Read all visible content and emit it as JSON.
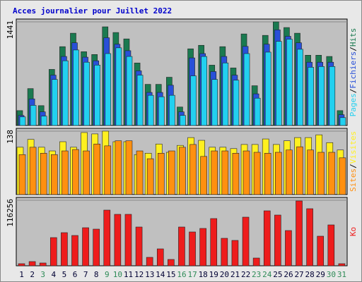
{
  "chart_data": [
    {
      "type": "bar",
      "title": "Acces journalier pour Juillet 2022",
      "legend_separator": "/",
      "categories": [
        "1",
        "2",
        "3",
        "4",
        "5",
        "6",
        "7",
        "8",
        "9",
        "10",
        "11",
        "12",
        "13",
        "14",
        "15",
        "16",
        "17",
        "18",
        "19",
        "20",
        "21",
        "22",
        "23",
        "24",
        "25",
        "26",
        "27",
        "28",
        "29",
        "30",
        "31"
      ],
      "category_colors": [
        "#000033",
        "#000033",
        "#2e8b57",
        "#000033",
        "#000033",
        "#000033",
        "#000033",
        "#000033",
        "#2e8b57",
        "#2e8b57",
        "#000033",
        "#000033",
        "#000033",
        "#000033",
        "#000033",
        "#2e8b57",
        "#2e8b57",
        "#000033",
        "#000033",
        "#000033",
        "#000033",
        "#000033",
        "#2e8b57",
        "#2e8b57",
        "#000033",
        "#000033",
        "#000033",
        "#000033",
        "#000033",
        "#2e8b57",
        "#2e8b57"
      ],
      "ylim": [
        0,
        1441
      ],
      "yticks": [
        1441
      ],
      "series": [
        {
          "name": "Hits",
          "color": "#1a7a50",
          "values": [
            207,
            513,
            276,
            780,
            1096,
            1283,
            1026,
            987,
            1372,
            1293,
            1204,
            869,
            572,
            572,
            671,
            257,
            1066,
            1115,
            839,
            1096,
            800,
            1273,
            553,
            1253,
            1441,
            1362,
            1283,
            977,
            977,
            960,
            207
          ]
        },
        {
          "name": "Fichiers",
          "color": "#2850d8",
          "values": [
            140,
            370,
            190,
            700,
            960,
            1150,
            950,
            900,
            1220,
            1130,
            1040,
            760,
            460,
            460,
            560,
            190,
            940,
            1000,
            750,
            960,
            700,
            1100,
            440,
            1130,
            1330,
            1240,
            1150,
            880,
            880,
            880,
            150
          ]
        },
        {
          "name": "Pages",
          "color": "#22d0f0",
          "values": [
            120,
            280,
            130,
            640,
            900,
            1050,
            880,
            840,
            1000,
            1080,
            960,
            700,
            420,
            400,
            420,
            140,
            690,
            960,
            640,
            870,
            630,
            1000,
            380,
            1020,
            1170,
            1200,
            1060,
            810,
            820,
            820,
            110
          ]
        }
      ]
    },
    {
      "type": "bar",
      "ylim": [
        0,
        138
      ],
      "yticks": [
        138
      ],
      "series": [
        {
          "name": "Visites",
          "color": "#fff020",
          "values": [
            103,
            120,
            103,
            95,
            115,
            103,
            135,
            132,
            138,
            115,
            115,
            87,
            90,
            110,
            92,
            107,
            124,
            118,
            103,
            103,
            100,
            109,
            109,
            121,
            109,
            117,
            124,
            124,
            130,
            113,
            97
          ]
        },
        {
          "name": "Sites",
          "color": "#ff9010",
          "values": [
            87,
            103,
            90,
            87,
            95,
            98,
            95,
            110,
            106,
            117,
            117,
            95,
            78,
            90,
            95,
            103,
            109,
            83,
            95,
            95,
            90,
            95,
            92,
            90,
            92,
            97,
            104,
            97,
            92,
            92,
            80
          ]
        }
      ]
    },
    {
      "type": "bar",
      "ylim": [
        0,
        116256
      ],
      "yticks": [
        116256
      ],
      "series": [
        {
          "name": "Ko",
          "color": "#ee1c1c",
          "values": [
            3750,
            7500,
            5000,
            50000,
            58750,
            53750,
            67500,
            65000,
            98750,
            91250,
            91250,
            68750,
            15000,
            30000,
            11250,
            68750,
            60000,
            66250,
            83750,
            48750,
            45000,
            86250,
            13750,
            97500,
            90000,
            62500,
            115000,
            101250,
            52500,
            72500,
            3750
          ]
        }
      ]
    }
  ]
}
